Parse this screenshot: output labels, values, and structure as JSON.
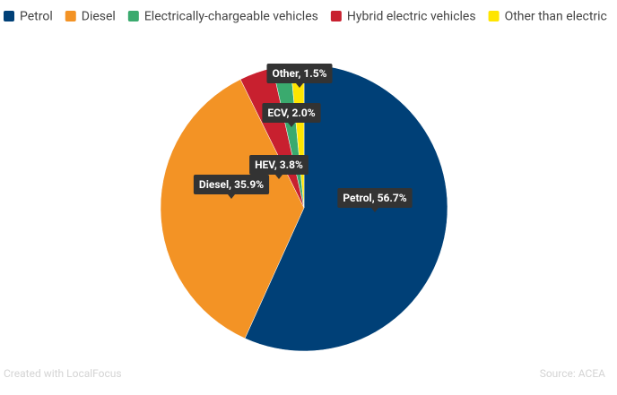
{
  "chart_data": {
    "type": "pie",
    "legend": [
      {
        "name": "Petrol",
        "color": "#004077"
      },
      {
        "name": "Diesel",
        "color": "#f39325"
      },
      {
        "name": "Electrically-chargeable vehicles",
        "color": "#3aaa6e"
      },
      {
        "name": "Hybrid electric vehicles",
        "color": "#c8202f"
      },
      {
        "name": "Other than electric",
        "color": "#ffe500"
      }
    ],
    "values": [
      56.7,
      35.9,
      3.8,
      2.0,
      1.5
    ],
    "value_labels": [
      "Petrol, 56.7%",
      "Diesel, 35.9%",
      "HEV, 3.8%",
      "ECV, 2.0%",
      "Other, 1.5%"
    ],
    "colors": [
      "#004077",
      "#f39325",
      "#c8202f",
      "#3aaa6e",
      "#ffe500"
    ],
    "credit": "Created with LocalFocus",
    "source": "Source: ACEA"
  }
}
